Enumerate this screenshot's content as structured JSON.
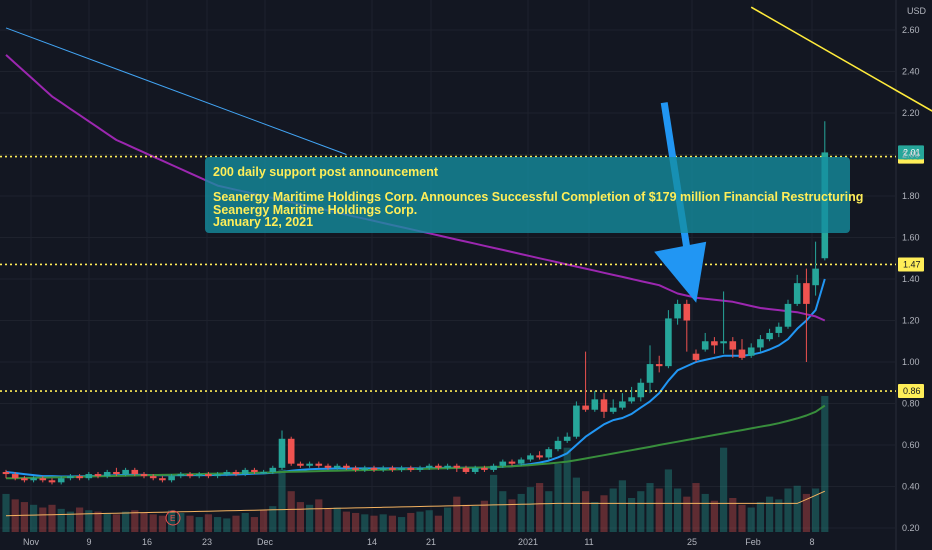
{
  "chart_data": {
    "type": "candlestick",
    "currency": "USD",
    "y_ticks": [
      "2.60",
      "2.40",
      "2.20",
      "2.00",
      "1.80",
      "1.60",
      "1.40",
      "1.20",
      "1.00",
      "0.80",
      "0.60",
      "0.40",
      "0.20"
    ],
    "x_ticks": [
      "Nov",
      "9",
      "16",
      "23",
      "Dec",
      "14",
      "21",
      "2021",
      "11",
      "25",
      "Feb",
      "8"
    ],
    "ylim": [
      0.2,
      2.7
    ],
    "horizontal_levels": [
      {
        "label": "1.99",
        "value": 1.99,
        "color": "#ffee58"
      },
      {
        "label": "1.47",
        "value": 1.47,
        "color": "#ffee58"
      },
      {
        "label": "0.86",
        "value": 0.86,
        "color": "#ffee58"
      }
    ],
    "last_price": {
      "label": "2.01",
      "value": 2.01
    },
    "candles": [
      [
        0.47,
        0.46,
        0.48,
        0.44
      ],
      [
        0.46,
        0.44,
        0.47,
        0.43
      ],
      [
        0.44,
        0.43,
        0.45,
        0.42
      ],
      [
        0.43,
        0.44,
        0.45,
        0.42
      ],
      [
        0.44,
        0.43,
        0.45,
        0.42
      ],
      [
        0.43,
        0.42,
        0.44,
        0.41
      ],
      [
        0.42,
        0.44,
        0.45,
        0.41
      ],
      [
        0.44,
        0.45,
        0.46,
        0.43
      ],
      [
        0.45,
        0.44,
        0.46,
        0.43
      ],
      [
        0.44,
        0.46,
        0.47,
        0.43
      ],
      [
        0.46,
        0.45,
        0.47,
        0.44
      ],
      [
        0.45,
        0.47,
        0.48,
        0.44
      ],
      [
        0.47,
        0.46,
        0.49,
        0.45
      ],
      [
        0.46,
        0.48,
        0.49,
        0.45
      ],
      [
        0.48,
        0.46,
        0.49,
        0.45
      ],
      [
        0.46,
        0.45,
        0.47,
        0.44
      ],
      [
        0.45,
        0.44,
        0.46,
        0.43
      ],
      [
        0.44,
        0.43,
        0.45,
        0.42
      ],
      [
        0.43,
        0.45,
        0.46,
        0.42
      ],
      [
        0.45,
        0.46,
        0.47,
        0.44
      ],
      [
        0.46,
        0.45,
        0.47,
        0.44
      ],
      [
        0.45,
        0.46,
        0.47,
        0.44
      ],
      [
        0.46,
        0.45,
        0.47,
        0.44
      ],
      [
        0.45,
        0.46,
        0.47,
        0.44
      ],
      [
        0.46,
        0.47,
        0.48,
        0.45
      ],
      [
        0.47,
        0.46,
        0.48,
        0.45
      ],
      [
        0.46,
        0.48,
        0.49,
        0.45
      ],
      [
        0.48,
        0.47,
        0.49,
        0.46
      ],
      [
        0.47,
        0.47,
        0.48,
        0.46
      ],
      [
        0.47,
        0.49,
        0.5,
        0.46
      ],
      [
        0.49,
        0.63,
        0.67,
        0.48
      ],
      [
        0.63,
        0.51,
        0.64,
        0.5
      ],
      [
        0.51,
        0.5,
        0.52,
        0.49
      ],
      [
        0.5,
        0.51,
        0.52,
        0.49
      ],
      [
        0.51,
        0.5,
        0.52,
        0.49
      ],
      [
        0.5,
        0.49,
        0.51,
        0.48
      ],
      [
        0.49,
        0.5,
        0.51,
        0.48
      ],
      [
        0.5,
        0.49,
        0.51,
        0.48
      ],
      [
        0.49,
        0.48,
        0.5,
        0.47
      ],
      [
        0.48,
        0.49,
        0.5,
        0.47
      ],
      [
        0.49,
        0.48,
        0.5,
        0.47
      ],
      [
        0.48,
        0.49,
        0.5,
        0.47
      ],
      [
        0.49,
        0.48,
        0.5,
        0.47
      ],
      [
        0.48,
        0.49,
        0.5,
        0.47
      ],
      [
        0.49,
        0.48,
        0.5,
        0.47
      ],
      [
        0.48,
        0.49,
        0.5,
        0.47
      ],
      [
        0.49,
        0.5,
        0.51,
        0.48
      ],
      [
        0.5,
        0.49,
        0.51,
        0.48
      ],
      [
        0.49,
        0.5,
        0.51,
        0.48
      ],
      [
        0.5,
        0.49,
        0.51,
        0.47
      ],
      [
        0.49,
        0.47,
        0.5,
        0.46
      ],
      [
        0.47,
        0.49,
        0.5,
        0.46
      ],
      [
        0.49,
        0.48,
        0.5,
        0.47
      ],
      [
        0.48,
        0.5,
        0.51,
        0.47
      ],
      [
        0.5,
        0.52,
        0.53,
        0.49
      ],
      [
        0.52,
        0.51,
        0.53,
        0.5
      ],
      [
        0.51,
        0.53,
        0.54,
        0.5
      ],
      [
        0.53,
        0.55,
        0.56,
        0.52
      ],
      [
        0.55,
        0.54,
        0.57,
        0.53
      ],
      [
        0.54,
        0.58,
        0.59,
        0.53
      ],
      [
        0.58,
        0.62,
        0.64,
        0.57
      ],
      [
        0.62,
        0.64,
        0.66,
        0.61
      ],
      [
        0.64,
        0.79,
        0.81,
        0.63
      ],
      [
        0.79,
        0.77,
        1.05,
        0.76
      ],
      [
        0.77,
        0.82,
        0.86,
        0.76
      ],
      [
        0.82,
        0.76,
        0.85,
        0.73
      ],
      [
        0.76,
        0.78,
        0.82,
        0.75
      ],
      [
        0.78,
        0.81,
        0.85,
        0.77
      ],
      [
        0.81,
        0.83,
        0.88,
        0.8
      ],
      [
        0.83,
        0.9,
        0.92,
        0.81
      ],
      [
        0.9,
        0.99,
        1.08,
        0.85
      ],
      [
        0.99,
        0.98,
        1.03,
        0.95
      ],
      [
        0.98,
        1.21,
        1.25,
        0.97
      ],
      [
        1.21,
        1.28,
        1.3,
        1.18
      ],
      [
        1.28,
        1.2,
        1.3,
        1.05
      ],
      [
        1.04,
        1.01,
        1.06,
        1.0
      ],
      [
        1.06,
        1.1,
        1.14,
        1.05
      ],
      [
        1.1,
        1.08,
        1.12,
        1.04
      ],
      [
        1.09,
        1.1,
        1.34,
        1.04
      ],
      [
        1.1,
        1.06,
        1.12,
        1.02
      ],
      [
        1.06,
        1.02,
        1.11,
        1.01
      ],
      [
        1.03,
        1.07,
        1.09,
        1.02
      ],
      [
        1.07,
        1.11,
        1.13,
        1.05
      ],
      [
        1.11,
        1.14,
        1.16,
        1.1
      ],
      [
        1.14,
        1.17,
        1.19,
        1.12
      ],
      [
        1.17,
        1.28,
        1.3,
        1.16
      ],
      [
        1.28,
        1.38,
        1.42,
        1.27
      ],
      [
        1.38,
        1.28,
        1.45,
        1.0
      ],
      [
        1.37,
        1.45,
        1.58,
        1.32
      ],
      [
        1.5,
        2.01,
        2.16,
        1.49
      ]
    ],
    "volume_buy": [
      true,
      false,
      false,
      true,
      false,
      false,
      true,
      true,
      false,
      true,
      false,
      true,
      false,
      true,
      false,
      false,
      false,
      false,
      true,
      true,
      false,
      true,
      false,
      true,
      true,
      false,
      true,
      false,
      false,
      true,
      true,
      false,
      false,
      true,
      false,
      false,
      true,
      false,
      false,
      true,
      false,
      true,
      false,
      true,
      false,
      true,
      true,
      false,
      true,
      false,
      false,
      true,
      false,
      true,
      true,
      false,
      true,
      true,
      false,
      true,
      true,
      true,
      true,
      false,
      true,
      false,
      true,
      true,
      true,
      true,
      true,
      false,
      true,
      true,
      false,
      false,
      true,
      false,
      true,
      false,
      false,
      true,
      true,
      true,
      true,
      true,
      true,
      false,
      true,
      true
    ],
    "volume_rel": [
      0.28,
      0.24,
      0.22,
      0.2,
      0.18,
      0.2,
      0.17,
      0.15,
      0.18,
      0.16,
      0.15,
      0.14,
      0.13,
      0.15,
      0.16,
      0.14,
      0.13,
      0.12,
      0.16,
      0.14,
      0.12,
      0.11,
      0.13,
      0.11,
      0.1,
      0.12,
      0.14,
      0.11,
      0.16,
      0.19,
      0.46,
      0.3,
      0.22,
      0.2,
      0.24,
      0.17,
      0.18,
      0.15,
      0.14,
      0.13,
      0.12,
      0.13,
      0.12,
      0.11,
      0.14,
      0.15,
      0.16,
      0.12,
      0.18,
      0.26,
      0.2,
      0.19,
      0.23,
      0.42,
      0.3,
      0.24,
      0.28,
      0.33,
      0.36,
      0.3,
      0.5,
      0.62,
      0.4,
      0.3,
      0.22,
      0.27,
      0.32,
      0.38,
      0.25,
      0.3,
      0.36,
      0.32,
      0.46,
      0.32,
      0.26,
      0.36,
      0.28,
      0.23,
      0.62,
      0.25,
      0.2,
      0.18,
      0.22,
      0.26,
      0.24,
      0.32,
      0.34,
      0.28,
      0.32,
      1.0
    ],
    "series": [
      {
        "color": "#2196f3",
        "values": [
          0.47,
          0.465,
          0.46,
          0.455,
          0.45,
          0.45,
          0.448,
          0.448,
          0.449,
          0.45,
          0.451,
          0.452,
          0.454,
          0.456,
          0.457,
          0.456,
          0.455,
          0.454,
          0.454,
          0.455,
          0.455,
          0.455,
          0.455,
          0.456,
          0.457,
          0.458,
          0.46,
          0.462,
          0.463,
          0.466,
          0.47,
          0.476,
          0.48,
          0.483,
          0.485,
          0.486,
          0.487,
          0.487,
          0.487,
          0.487,
          0.487,
          0.487,
          0.487,
          0.487,
          0.487,
          0.487,
          0.488,
          0.489,
          0.49,
          0.49,
          0.49,
          0.49,
          0.491,
          0.492,
          0.495,
          0.498,
          0.502,
          0.508,
          0.515,
          0.525,
          0.54,
          0.56,
          0.6,
          0.64,
          0.67,
          0.7,
          0.72,
          0.73,
          0.75,
          0.78,
          0.81,
          0.85,
          0.91,
          0.96,
          0.98,
          1.0,
          1.01,
          1.02,
          1.03,
          1.03,
          1.03,
          1.035,
          1.045,
          1.06,
          1.08,
          1.11,
          1.16,
          1.2,
          1.25,
          1.4
        ]
      },
      {
        "color": "#388e3c",
        "values": [
          0.44,
          0.44,
          0.441,
          0.442,
          0.443,
          0.444,
          0.445,
          0.446,
          0.447,
          0.448,
          0.449,
          0.45,
          0.451,
          0.452,
          0.453,
          0.454,
          0.455,
          0.456,
          0.457,
          0.458,
          0.459,
          0.46,
          0.461,
          0.462,
          0.463,
          0.464,
          0.465,
          0.466,
          0.467,
          0.468,
          0.47,
          0.471,
          0.472,
          0.473,
          0.474,
          0.475,
          0.476,
          0.477,
          0.478,
          0.479,
          0.48,
          0.481,
          0.482,
          0.483,
          0.484,
          0.485,
          0.486,
          0.487,
          0.488,
          0.489,
          0.49,
          0.491,
          0.492,
          0.494,
          0.496,
          0.498,
          0.5,
          0.503,
          0.507,
          0.511,
          0.515,
          0.52,
          0.527,
          0.535,
          0.543,
          0.551,
          0.559,
          0.567,
          0.575,
          0.583,
          0.591,
          0.6,
          0.608,
          0.616,
          0.624,
          0.632,
          0.64,
          0.648,
          0.656,
          0.664,
          0.672,
          0.68,
          0.688,
          0.696,
          0.705,
          0.716,
          0.728,
          0.742,
          0.76,
          0.79
        ]
      },
      {
        "color": "#9c27b0",
        "values": [
          2.48,
          2.44,
          2.4,
          2.36,
          2.32,
          2.28,
          2.25,
          2.22,
          2.19,
          2.16,
          2.13,
          2.1,
          2.07,
          2.05,
          2.03,
          2.01,
          1.99,
          1.97,
          1.95,
          1.93,
          1.91,
          1.89,
          1.87,
          1.85,
          1.84,
          1.83,
          1.82,
          1.81,
          1.8,
          1.79,
          1.78,
          1.77,
          1.76,
          1.75,
          1.74,
          1.73,
          1.72,
          1.71,
          1.7,
          1.69,
          1.68,
          1.67,
          1.66,
          1.65,
          1.64,
          1.63,
          1.62,
          1.61,
          1.6,
          1.59,
          1.58,
          1.57,
          1.56,
          1.55,
          1.54,
          1.53,
          1.52,
          1.51,
          1.5,
          1.49,
          1.48,
          1.47,
          1.46,
          1.45,
          1.44,
          1.43,
          1.42,
          1.41,
          1.4,
          1.39,
          1.38,
          1.37,
          1.35,
          1.33,
          1.32,
          1.31,
          1.305,
          1.3,
          1.295,
          1.29,
          1.28,
          1.27,
          1.26,
          1.255,
          1.25,
          1.245,
          1.24,
          1.23,
          1.22,
          1.2
        ]
      }
    ],
    "trend_lines": [
      {
        "color": "#42a5f5",
        "from": [
          0,
          2.61
        ],
        "to": [
          37,
          2.0
        ]
      },
      {
        "color": "#ffeb3b",
        "from": [
          81,
          2.71
        ],
        "to": [
          103,
          2.15
        ]
      }
    ],
    "annotation": {
      "title": "200 daily support post announcement",
      "line1": "Seanergy Maritime Holdings Corp. Announces Successful Completion of $179 million Financial Restructuring",
      "line2": "Seanergy Maritime Holdings Corp.",
      "line3": "January 12, 2021",
      "color": "#ffee58",
      "background": "#148ea0"
    },
    "arrow": {
      "color": "#2196f3",
      "target_index": 76,
      "from_value": 2.25,
      "to_value": 1.3
    },
    "colors": {
      "up": "#26a69a",
      "down": "#ef5350",
      "background": "#131722"
    },
    "earnings_marker": "E"
  }
}
